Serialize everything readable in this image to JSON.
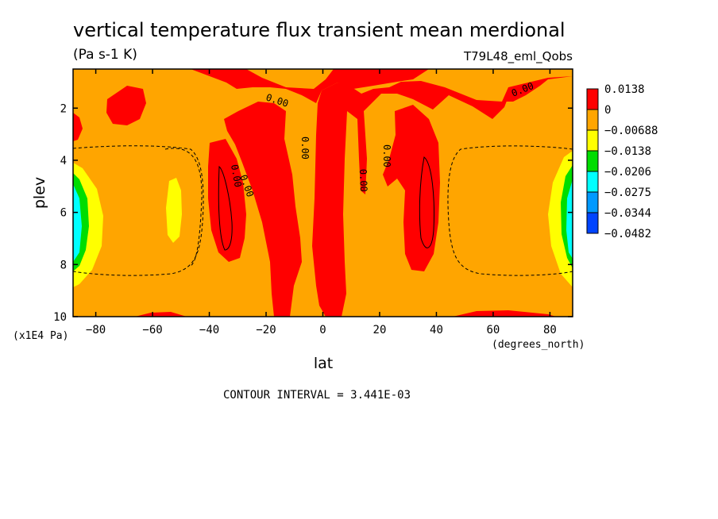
{
  "chart_data": {
    "type": "heatmap",
    "title": "vertical temperature flux transient mean merdional",
    "subtitle_left": "(Pa s-1 K)",
    "subtitle_right": "T79L48_eml_Qobs",
    "xlabel": "lat",
    "x_units": "(degrees_north)",
    "ylabel": "plev",
    "y_units": "(x1E4 Pa)",
    "footer": "CONTOUR INTERVAL = 3.441E-03",
    "xlim": [
      -88,
      88
    ],
    "ylim": [
      0.5,
      10
    ],
    "y_inverted": true,
    "x_ticks": [
      -80,
      -60,
      -40,
      -20,
      0,
      20,
      40,
      60,
      80
    ],
    "y_ticks": [
      2,
      4,
      6,
      8,
      10
    ],
    "contour_labels": [
      "0.00",
      "0.00",
      "0.00",
      "0.00",
      "0.00",
      "0.00",
      "0.00",
      "0.00",
      "0.00",
      "0.00"
    ],
    "colorbar": {
      "levels": [
        {
          "label": "0.0138",
          "color": "#ff0000"
        },
        {
          "label": "0",
          "color": "#ffa500"
        },
        {
          "label": "-0.00688",
          "color": "#ffff00"
        },
        {
          "label": "-0.0138",
          "color": "#00dd00"
        },
        {
          "label": "-0.0206",
          "color": "#00ffff"
        },
        {
          "label": "-0.0275",
          "color": "#0099ff"
        },
        {
          "label": "-0.0344",
          "color": "#0044ff"
        },
        {
          "label": "-0.0482",
          "color": null
        }
      ]
    },
    "field_colors": {
      "background": "#ffa500",
      "positive": "#ff0000",
      "neg1": "#ffff00",
      "neg2": "#00dd00",
      "neg3": "#00ffff",
      "neg4": "#0099ff"
    }
  }
}
